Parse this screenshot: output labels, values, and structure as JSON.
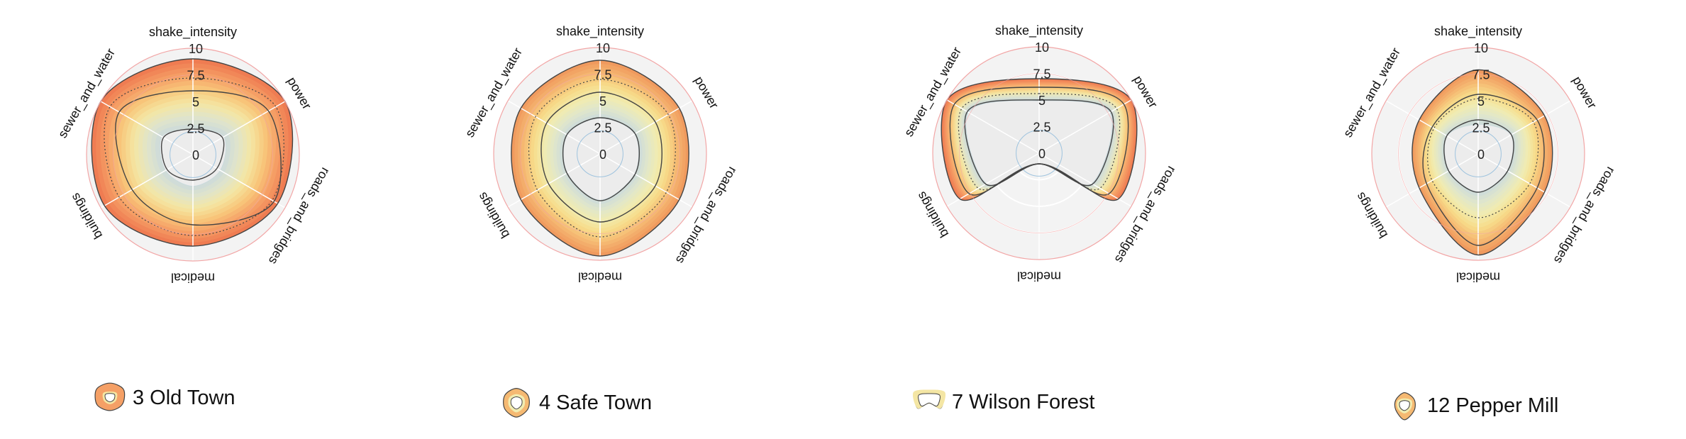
{
  "chart_data": [
    {
      "type": "radar",
      "title": "3 Old Town",
      "axes": [
        "shake_intensity",
        "power",
        "roads_and_bridges",
        "medical",
        "buildings",
        "sewer_and_water"
      ],
      "ticks": [
        "0",
        "2.5",
        "5",
        "7.5",
        "10"
      ],
      "range": [
        0,
        10
      ],
      "band_outer": [
        9.0,
        10.0,
        9.2,
        8.6,
        9.6,
        10.0
      ],
      "band_inner": [
        2.4,
        3.4,
        3.0,
        3.0,
        3.0,
        3.4
      ],
      "lines": [
        {
          "style": "solid",
          "values": [
            9.0,
            10.0,
            9.2,
            8.6,
            9.6,
            10.0
          ]
        },
        {
          "style": "solid",
          "values": [
            6.0,
            8.2,
            8.8,
            6.6,
            6.6,
            8.0
          ]
        },
        {
          "style": "dotted",
          "values": [
            7.2,
            9.0,
            8.6,
            7.6,
            8.0,
            9.0
          ]
        },
        {
          "style": "solid",
          "values": [
            2.4,
            3.2,
            2.6,
            2.4,
            2.8,
            3.2
          ]
        }
      ],
      "color_scale": "warm"
    },
    {
      "type": "radar",
      "title": "4 Safe Town",
      "axes": [
        "shake_intensity",
        "power",
        "roads_and_bridges",
        "medical",
        "buildings",
        "sewer_and_water"
      ],
      "ticks": [
        "0",
        "2.5",
        "5",
        "7.5",
        "10"
      ],
      "range": [
        0,
        10
      ],
      "band_outer": [
        8.8,
        8.6,
        8.6,
        9.6,
        8.6,
        8.6
      ],
      "band_inner": [
        3.4,
        3.8,
        3.8,
        4.4,
        3.6,
        3.6
      ],
      "lines": [
        {
          "style": "solid",
          "values": [
            8.8,
            8.6,
            8.6,
            9.6,
            8.6,
            8.6
          ]
        },
        {
          "style": "dotted",
          "values": [
            7.0,
            7.4,
            7.2,
            7.8,
            6.8,
            7.0
          ]
        },
        {
          "style": "solid",
          "values": [
            5.8,
            6.0,
            6.0,
            6.4,
            5.6,
            5.8
          ]
        },
        {
          "style": "solid",
          "values": [
            3.4,
            3.8,
            3.8,
            4.4,
            3.6,
            3.6
          ]
        }
      ],
      "color_scale": "yellow"
    },
    {
      "type": "radar",
      "title": "7 Wilson Forest",
      "axes": [
        "shake_intensity",
        "power",
        "roads_and_bridges",
        "medical",
        "buildings",
        "sewer_and_water"
      ],
      "ticks": [
        "0",
        "2.5",
        "5",
        "7.5",
        "10"
      ],
      "range": [
        0,
        10
      ],
      "band_outer": [
        7.0,
        10.0,
        8.6,
        1.0,
        8.6,
        10.0
      ],
      "band_inner": [
        5.0,
        7.8,
        5.8,
        1.0,
        5.8,
        7.8
      ],
      "lines": [
        {
          "style": "solid",
          "values": [
            7.0,
            10.0,
            8.6,
            1.0,
            8.6,
            10.0
          ]
        },
        {
          "style": "solid",
          "values": [
            6.2,
            9.2,
            7.6,
            1.0,
            7.6,
            9.2
          ]
        },
        {
          "style": "dotted",
          "values": [
            5.6,
            8.4,
            6.6,
            1.0,
            6.6,
            8.4
          ]
        },
        {
          "style": "solid",
          "values": [
            5.0,
            7.8,
            5.8,
            1.0,
            5.8,
            7.8
          ]
        }
      ],
      "color_scale": "warm"
    },
    {
      "type": "radar",
      "title": "12 Pepper Mill",
      "axes": [
        "shake_intensity",
        "power",
        "roads_and_bridges",
        "medical",
        "buildings",
        "sewer_and_water"
      ],
      "ticks": [
        "0",
        "2.5",
        "5",
        "7.5",
        "10"
      ],
      "range": [
        0,
        10
      ],
      "band_outer": [
        7.9,
        7.2,
        7.2,
        9.5,
        6.4,
        6.4
      ],
      "band_inner": [
        2.8,
        3.6,
        3.2,
        3.6,
        3.2,
        3.4
      ],
      "lines": [
        {
          "style": "solid",
          "values": [
            7.9,
            7.2,
            7.2,
            9.5,
            6.4,
            6.4
          ]
        },
        {
          "style": "solid",
          "values": [
            5.6,
            6.4,
            6.4,
            8.6,
            5.6,
            5.0
          ]
        },
        {
          "style": "dotted",
          "values": [
            5.2,
            6.0,
            5.6,
            6.0,
            5.0,
            4.8
          ]
        },
        {
          "style": "solid",
          "values": [
            3.2,
            3.6,
            3.2,
            3.6,
            3.2,
            3.4
          ]
        }
      ],
      "color_scale": "yellow"
    }
  ],
  "palette": {
    "warm": [
      "#c9d9dd",
      "#dfe4cc",
      "#f4e6a4",
      "#f8c97c",
      "#f5a066",
      "#ef7c52"
    ],
    "yellow": [
      "#c9d9dd",
      "#dfe6cc",
      "#f1ecb0",
      "#f7dc8a",
      "#f5b972",
      "#f09a5e"
    ],
    "ring_color": "#f2a6a6",
    "grid_fill": "#f3f3f3",
    "line_color": "#444444",
    "tick_color": "#222222"
  }
}
